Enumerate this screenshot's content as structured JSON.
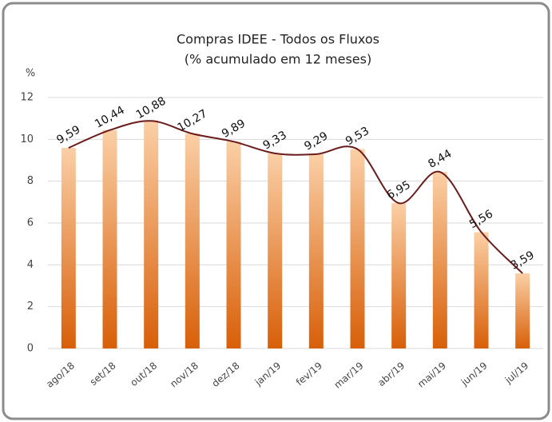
{
  "chart_data": {
    "type": "bar",
    "title": "Compras IDEE - Todos os Fluxos",
    "subtitle": "(% acumulado em 12 meses)",
    "y_label": "%",
    "categories": [
      "ago/18",
      "set/18",
      "out/18",
      "nov/18",
      "dez/18",
      "jan/19",
      "fev/19",
      "mar/19",
      "abr/19",
      "mai/19",
      "jun/19",
      "jul/19"
    ],
    "values": [
      9.59,
      10.44,
      10.88,
      10.27,
      9.89,
      9.33,
      9.29,
      9.53,
      6.95,
      8.44,
      5.56,
      3.59
    ],
    "value_labels": [
      "9,59",
      "10,44",
      "10,88",
      "10,27",
      "9,89",
      "9,33",
      "9,29",
      "9,53",
      "6,95",
      "8,44",
      "5,56",
      "3,59"
    ],
    "color": "#e8802a",
    "line": true,
    "line_color": "#6a1c1c",
    "ylim": [
      0,
      12
    ],
    "yticks": [
      0,
      2,
      4,
      6,
      8,
      10,
      12
    ],
    "grid": true
  }
}
